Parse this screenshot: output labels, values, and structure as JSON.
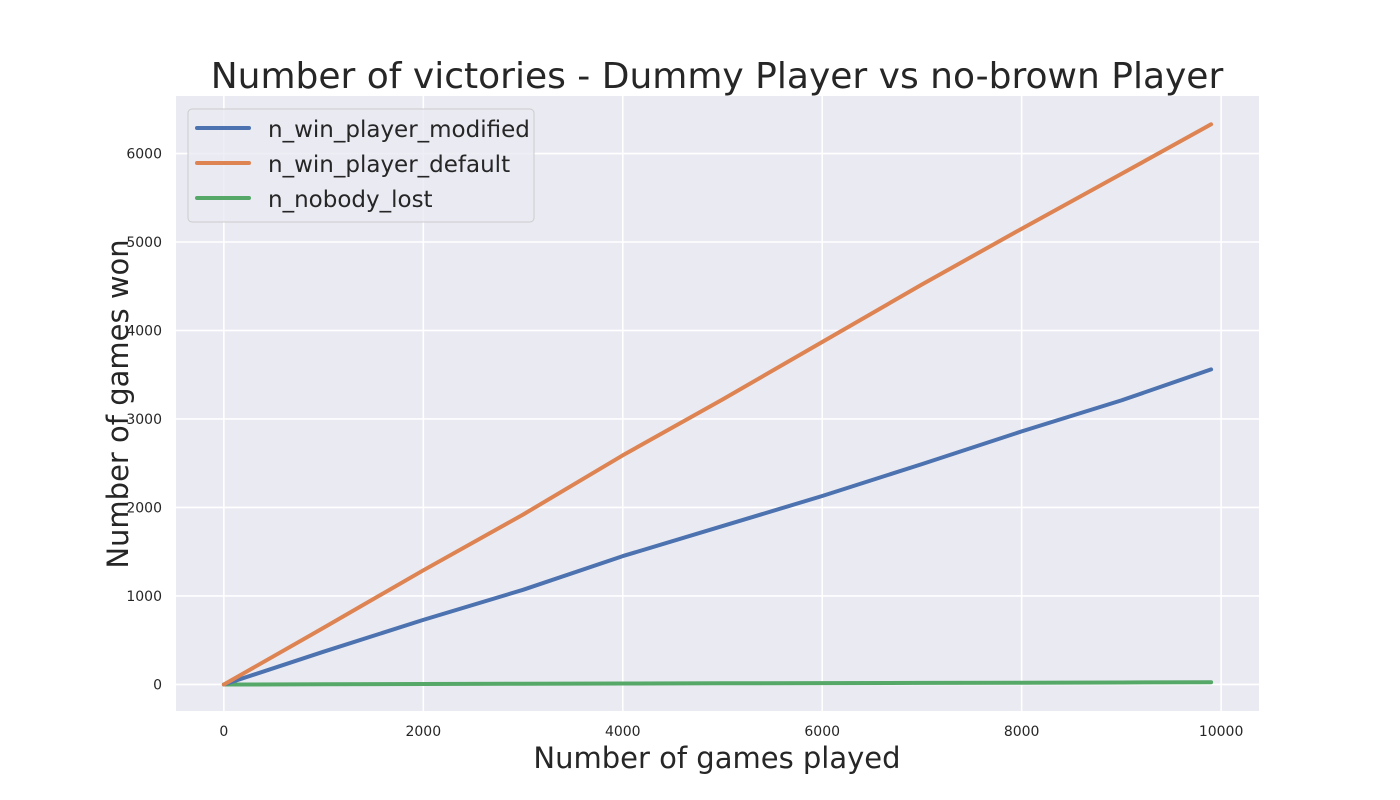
{
  "chart_data": {
    "type": "line",
    "title": "Number of victories - Dummy Player vs no-brown Player",
    "xlabel": "Number of games played",
    "ylabel": "Number of games won",
    "xlim": [
      -480,
      10380
    ],
    "ylim": [
      -300,
      6650
    ],
    "xticks": [
      0,
      2000,
      4000,
      6000,
      8000,
      10000
    ],
    "xtick_labels": [
      "0",
      "2000",
      "4000",
      "6000",
      "8000",
      "10000"
    ],
    "yticks": [
      0,
      1000,
      2000,
      3000,
      4000,
      5000,
      6000
    ],
    "ytick_labels": [
      "0",
      "1000",
      "2000",
      "3000",
      "4000",
      "5000",
      "6000"
    ],
    "grid": true,
    "legend_position": "top-left",
    "colors": {
      "background": "#eaeaf2",
      "grid": "#ffffff"
    },
    "x": [
      0,
      1000,
      2000,
      3000,
      4000,
      5000,
      6000,
      7000,
      8000,
      9000,
      9900
    ],
    "series": [
      {
        "name": "n_win_player_modified",
        "color": "#4c72b0",
        "values": [
          0,
          370,
          730,
          1070,
          1450,
          1790,
          2130,
          2490,
          2860,
          3210,
          3560
        ]
      },
      {
        "name": "n_win_player_default",
        "color": "#dd8452",
        "values": [
          0,
          640,
          1290,
          1920,
          2590,
          3220,
          3870,
          4520,
          5150,
          5770,
          6330
        ]
      },
      {
        "name": "n_nobody_lost",
        "color": "#55a868",
        "values": [
          0,
          2,
          5,
          8,
          11,
          13,
          15,
          18,
          20,
          22,
          25
        ]
      }
    ]
  }
}
